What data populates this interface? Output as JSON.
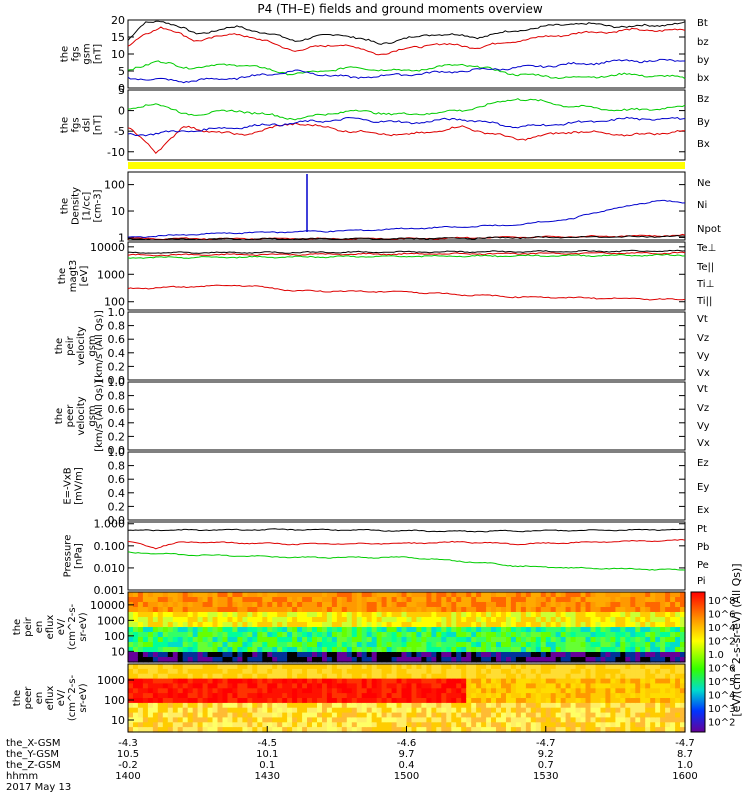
{
  "title": "P4 (TH–E) fields and ground moments overview",
  "colors": {
    "black": "#000000",
    "red": "#dd0000",
    "green": "#00cc00",
    "blue": "#0000cc",
    "yellow": "#ffff00"
  },
  "chart_data": {
    "type": "multi-panel-line",
    "x_ticks": [
      "1400",
      "1430",
      "1500",
      "1530",
      "1600"
    ],
    "x_range_hhmm": [
      "1400",
      "1600"
    ],
    "panels": [
      {
        "id": "fgs-gsm",
        "ylabel": [
          "the",
          "fgs",
          "gsm",
          "[nT]"
        ],
        "ylim": [
          0,
          20
        ],
        "yticks": [
          "0",
          "5",
          "10",
          "15",
          "20"
        ],
        "scale": "linear",
        "series": [
          {
            "name": "Bt",
            "color": "#000000",
            "kp": [
              [
                0,
                14
              ],
              [
                0.03,
                19
              ],
              [
                0.06,
                20
              ],
              [
                0.12,
                16
              ],
              [
                0.2,
                18
              ],
              [
                0.3,
                14
              ],
              [
                0.38,
                16
              ],
              [
                0.45,
                13
              ],
              [
                0.55,
                16
              ],
              [
                0.63,
                15
              ],
              [
                0.7,
                17
              ],
              [
                0.8,
                19
              ],
              [
                0.9,
                18
              ],
              [
                1,
                19
              ]
            ]
          },
          {
            "name": "bz",
            "color": "#dd0000",
            "kp": [
              [
                0,
                12
              ],
              [
                0.03,
                16
              ],
              [
                0.06,
                18
              ],
              [
                0.12,
                14
              ],
              [
                0.2,
                16
              ],
              [
                0.3,
                11
              ],
              [
                0.38,
                13
              ],
              [
                0.45,
                10
              ],
              [
                0.55,
                13
              ],
              [
                0.63,
                12
              ],
              [
                0.7,
                14
              ],
              [
                0.8,
                16
              ],
              [
                0.9,
                17
              ],
              [
                1,
                17
              ]
            ]
          },
          {
            "name": "by",
            "color": "#00cc00",
            "kp": [
              [
                0,
                5
              ],
              [
                0.05,
                8
              ],
              [
                0.1,
                6
              ],
              [
                0.2,
                7
              ],
              [
                0.3,
                4
              ],
              [
                0.4,
                6
              ],
              [
                0.5,
                5
              ],
              [
                0.6,
                7
              ],
              [
                0.7,
                4
              ],
              [
                0.8,
                3
              ],
              [
                0.9,
                4
              ],
              [
                1,
                3
              ]
            ]
          },
          {
            "name": "bx",
            "color": "#0000cc",
            "kp": [
              [
                0,
                3
              ],
              [
                0.1,
                2
              ],
              [
                0.2,
                3
              ],
              [
                0.3,
                5
              ],
              [
                0.4,
                3
              ],
              [
                0.5,
                4
              ],
              [
                0.6,
                5
              ],
              [
                0.7,
                6
              ],
              [
                0.8,
                7
              ],
              [
                0.9,
                8
              ],
              [
                1,
                8
              ]
            ]
          }
        ]
      },
      {
        "id": "fgs-dsl",
        "ylabel": [
          "the",
          "fgs",
          "dsl",
          "[nT]"
        ],
        "ylim": [
          -12,
          5
        ],
        "yticks": [
          "-10",
          "-5",
          "0",
          "5"
        ],
        "scale": "linear",
        "series": [
          {
            "name": "Bz",
            "color": "#dd0000",
            "kp": [
              [
                0,
                -4
              ],
              [
                0.05,
                -10
              ],
              [
                0.1,
                -4
              ],
              [
                0.2,
                -6
              ],
              [
                0.3,
                -3
              ],
              [
                0.4,
                -5
              ],
              [
                0.5,
                -6
              ],
              [
                0.6,
                -4
              ],
              [
                0.7,
                -7
              ],
              [
                0.8,
                -5
              ],
              [
                0.9,
                -6
              ],
              [
                1,
                -5
              ]
            ]
          },
          {
            "name": "By",
            "color": "#00cc00",
            "kp": [
              [
                0,
                0
              ],
              [
                0.05,
                2
              ],
              [
                0.1,
                -1
              ],
              [
                0.2,
                0
              ],
              [
                0.3,
                -2
              ],
              [
                0.4,
                0
              ],
              [
                0.5,
                -1
              ],
              [
                0.6,
                0
              ],
              [
                0.7,
                3
              ],
              [
                0.8,
                1
              ],
              [
                0.9,
                0
              ],
              [
                1,
                1
              ]
            ]
          },
          {
            "name": "Bx",
            "color": "#0000cc",
            "kp": [
              [
                0,
                -6
              ],
              [
                0.1,
                -5
              ],
              [
                0.2,
                -4
              ],
              [
                0.3,
                -3
              ],
              [
                0.4,
                -2
              ],
              [
                0.5,
                -3
              ],
              [
                0.6,
                -2
              ],
              [
                0.7,
                -4
              ],
              [
                0.8,
                -3
              ],
              [
                0.9,
                -2
              ],
              [
                1,
                -2
              ]
            ]
          }
        ]
      },
      {
        "id": "density",
        "ylabel": [
          "the",
          "Density",
          "[1/cc]",
          "[cm-3]"
        ],
        "ylim": [
          0.8,
          300
        ],
        "yticks": [
          "1",
          "10",
          "100"
        ],
        "scale": "log",
        "series": [
          {
            "name": "Ne",
            "color": "#dd0000",
            "kp": [
              [
                0,
                0.9
              ],
              [
                0.5,
                0.9
              ],
              [
                1,
                1.2
              ]
            ]
          },
          {
            "name": "Ni",
            "color": "#000000",
            "kp": [
              [
                0,
                0.85
              ],
              [
                0.5,
                0.9
              ],
              [
                1,
                1.1
              ]
            ]
          },
          {
            "name": "Npot",
            "color": "#0000cc",
            "kp": [
              [
                0,
                1
              ],
              [
                0.2,
                1.5
              ],
              [
                0.4,
                1.8
              ],
              [
                0.6,
                2.5
              ],
              [
                0.7,
                3
              ],
              [
                0.8,
                5
              ],
              [
                0.9,
                15
              ],
              [
                0.95,
                25
              ],
              [
                1,
                20
              ]
            ]
          }
        ]
      },
      {
        "id": "temp",
        "ylabel": [
          "the",
          "magt3",
          "[eV]"
        ],
        "ylim": [
          50,
          15000
        ],
        "yticks": [
          "100",
          "1000",
          "10000"
        ],
        "scale": "log",
        "series": [
          {
            "name": "Te⊥",
            "color": "#dd0000",
            "kp": [
              [
                0,
                5000
              ],
              [
                1,
                6000
              ]
            ]
          },
          {
            "name": "Te||",
            "color": "#000000",
            "kp": [
              [
                0,
                6000
              ],
              [
                1,
                7000
              ]
            ]
          },
          {
            "name": "Ti⊥",
            "color": "#dd0000",
            "kp": [
              [
                0,
                300
              ],
              [
                0.2,
                400
              ],
              [
                0.3,
                250
              ],
              [
                0.5,
                230
              ],
              [
                0.6,
                180
              ],
              [
                0.7,
                150
              ],
              [
                0.8,
                140
              ],
              [
                1,
                120
              ]
            ]
          },
          {
            "name": "Ti||",
            "color": "#00cc00",
            "kp": [
              [
                0,
                4000
              ],
              [
                1,
                5000
              ]
            ]
          }
        ]
      },
      {
        "id": "peir-vel",
        "ylabel": [
          "the",
          "peir",
          "velocity",
          "gsm",
          "[km/s (All Qs)]"
        ],
        "ylim": [
          0,
          1
        ],
        "yticks": [
          "0.0",
          "0.2",
          "0.4",
          "0.6",
          "0.8",
          "1.0"
        ],
        "scale": "linear",
        "legend": [
          {
            "name": "Vt",
            "color": "#000000"
          },
          {
            "name": "Vz",
            "color": "#dd0000"
          },
          {
            "name": "Vy",
            "color": "#00cc00"
          },
          {
            "name": "Vx",
            "color": "#0000cc"
          }
        ],
        "series": []
      },
      {
        "id": "peer-vel",
        "ylabel": [
          "the",
          "peer",
          "velocity",
          "gsm",
          "[km/s (All Qs)]"
        ],
        "ylim": [
          0,
          1
        ],
        "yticks": [
          "0.0",
          "0.2",
          "0.4",
          "0.6",
          "0.8",
          "1.0"
        ],
        "scale": "linear",
        "legend": [
          {
            "name": "Vt",
            "color": "#000000"
          },
          {
            "name": "Vz",
            "color": "#dd0000"
          },
          {
            "name": "Vy",
            "color": "#00cc00"
          },
          {
            "name": "Vx",
            "color": "#0000cc"
          }
        ],
        "series": []
      },
      {
        "id": "efield",
        "ylabel": [
          "E=-VxB",
          "[mV/m]"
        ],
        "ylim": [
          0,
          1
        ],
        "yticks": [
          "0.0",
          "0.2",
          "0.4",
          "0.6",
          "0.8",
          "1.0"
        ],
        "scale": "linear",
        "legend": [
          {
            "name": "Ez",
            "color": "#dd0000"
          },
          {
            "name": "Ey",
            "color": "#00cc00"
          },
          {
            "name": "Ex",
            "color": "#0000cc"
          }
        ],
        "series": []
      },
      {
        "id": "pressure",
        "ylabel": [
          "Pressure",
          "[nPa]"
        ],
        "ylim": [
          0.001,
          1.2
        ],
        "yticks": [
          "0.001",
          "0.010",
          "0.100",
          "1.000"
        ],
        "scale": "log",
        "series": [
          {
            "name": "Pt",
            "color": "#000000",
            "kp": [
              [
                0,
                0.5
              ],
              [
                0.3,
                0.55
              ],
              [
                0.6,
                0.45
              ],
              [
                0.8,
                0.5
              ],
              [
                1,
                0.55
              ]
            ]
          },
          {
            "name": "Pb",
            "color": "#dd0000",
            "kp": [
              [
                0,
                0.15
              ],
              [
                0.05,
                0.08
              ],
              [
                0.1,
                0.15
              ],
              [
                0.3,
                0.12
              ],
              [
                0.5,
                0.13
              ],
              [
                0.6,
                0.15
              ],
              [
                0.7,
                0.12
              ],
              [
                0.8,
                0.14
              ],
              [
                0.9,
                0.16
              ],
              [
                1,
                0.18
              ]
            ]
          },
          {
            "name": "Pe",
            "color": "#00cc00",
            "kp": [
              [
                0,
                0.05
              ],
              [
                0.1,
                0.04
              ],
              [
                0.3,
                0.03
              ],
              [
                0.5,
                0.03
              ],
              [
                0.6,
                0.02
              ],
              [
                0.7,
                0.012
              ],
              [
                0.8,
                0.01
              ],
              [
                1,
                0.008
              ]
            ]
          },
          {
            "name": "Pi",
            "color": "#0000cc",
            "kp": []
          }
        ]
      }
    ],
    "spectrograms": [
      {
        "id": "peir-eflux",
        "ylabel": [
          "the",
          "peir",
          "en",
          "eflux",
          "eV/",
          "(cm^2-s-",
          "sr-eV)"
        ],
        "yticks": [
          "10",
          "100",
          "1000",
          "10000"
        ]
      },
      {
        "id": "peer-eflux",
        "ylabel": [
          "the",
          "peer",
          "en",
          "eflux",
          "eV/",
          "(cm^2-s-",
          "sr-eV)"
        ],
        "yticks": [
          "10",
          "100",
          "1000"
        ]
      }
    ],
    "colorbar": {
      "label": "[eV/(cm^2-s-sr-eV) (All Qs)]",
      "ticks": [
        "10^8",
        "10^6",
        "10^4",
        "10^2",
        "1.0",
        "10^6",
        "10^5",
        "10^4",
        "10^3",
        "10^2"
      ]
    },
    "position_rows": [
      {
        "label": "the_X-GSM",
        "values": [
          "-4.3",
          "-4.5",
          "-4.6",
          "-4.7",
          "-4.7"
        ]
      },
      {
        "label": "the_Y-GSM",
        "values": [
          "10.5",
          "10.1",
          "9.7",
          "9.2",
          "8.7"
        ]
      },
      {
        "label": "the_Z-GSM",
        "values": [
          "-0.2",
          "0.1",
          "0.4",
          "0.7",
          "1.0"
        ]
      },
      {
        "label": "hhmm",
        "values": [
          "1400",
          "1430",
          "1500",
          "1530",
          "1600"
        ]
      }
    ],
    "date": "2017 May 13"
  }
}
